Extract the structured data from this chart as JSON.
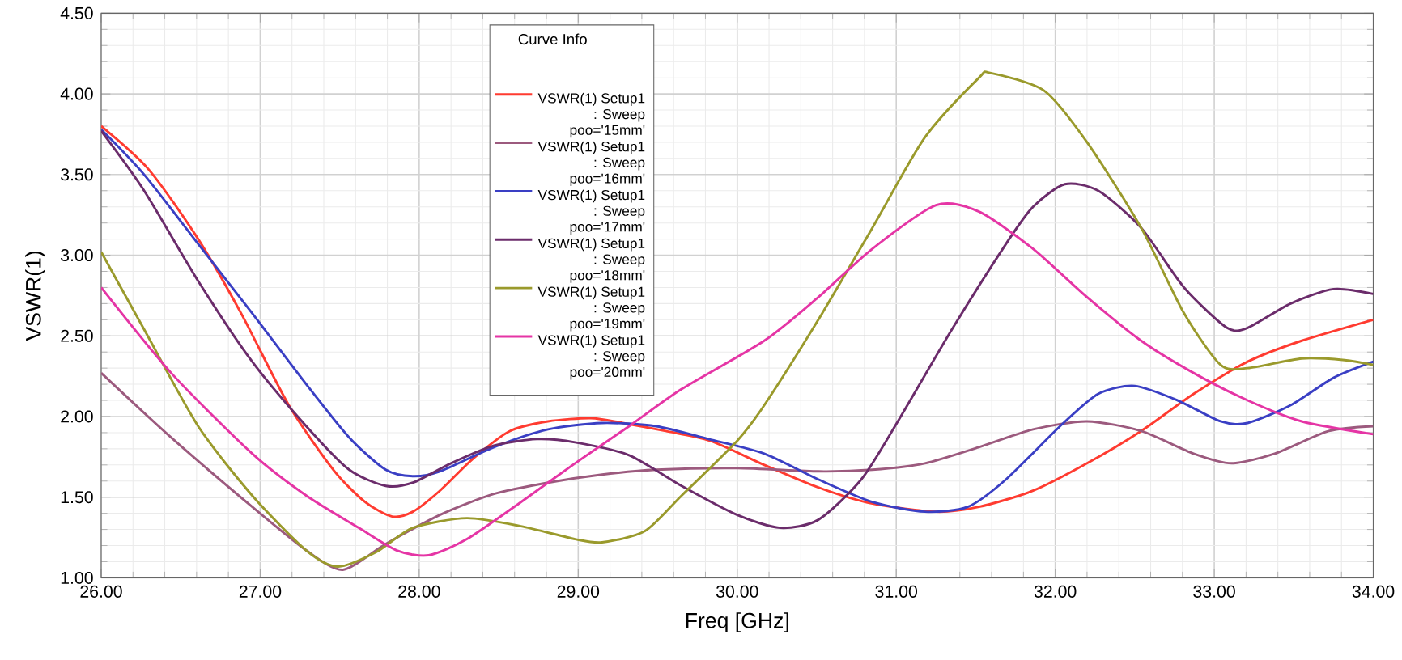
{
  "chart_data": {
    "type": "line",
    "xlabel": "Freq [GHz]",
    "ylabel": "VSWR(1)",
    "legend_title": "Curve Info",
    "legend": "top",
    "grid": true,
    "marker": "none",
    "line_style": "solid",
    "xlim": [
      26,
      34
    ],
    "ylim": [
      1,
      4.5
    ],
    "xticks": [
      {
        "value": 26,
        "label": "26.00"
      },
      {
        "value": 27,
        "label": "27.00"
      },
      {
        "value": 28,
        "label": "28.00"
      },
      {
        "value": 29,
        "label": "29.00"
      },
      {
        "value": 30,
        "label": "30.00"
      },
      {
        "value": 31,
        "label": "31.00"
      },
      {
        "value": 32,
        "label": "32.00"
      },
      {
        "value": 33,
        "label": "33.00"
      },
      {
        "value": 34,
        "label": "34.00"
      }
    ],
    "yticks": [
      {
        "value": 1,
        "label": "1.00"
      },
      {
        "value": 1.5,
        "label": "1.50"
      },
      {
        "value": 2,
        "label": "2.00"
      },
      {
        "value": 2.5,
        "label": "2.50"
      },
      {
        "value": 3,
        "label": "3.00"
      },
      {
        "value": 3.5,
        "label": "3.50"
      },
      {
        "value": 4,
        "label": "4.00"
      },
      {
        "value": 4.5,
        "label": "4.50"
      }
    ],
    "series": [
      {
        "name": "VSWR(1) Setup1 : Sweep poo='15mm'",
        "color": "#ff3b30",
        "x": [
          26,
          26.3,
          26.61,
          26.88,
          27.18,
          27.46,
          27.66,
          27.83,
          27.96,
          28.13,
          28.34,
          28.57,
          28.81,
          29.08,
          29.28,
          29.55,
          29.83,
          30.17,
          30.51,
          30.85,
          31.25,
          31.52,
          31.86,
          32.2,
          32.54,
          32.87,
          33.21,
          33.55,
          34
        ],
        "values": [
          3.8,
          3.53,
          3.1,
          2.64,
          2.07,
          1.67,
          1.47,
          1.38,
          1.41,
          1.54,
          1.74,
          1.91,
          1.97,
          1.99,
          1.96,
          1.91,
          1.85,
          1.7,
          1.56,
          1.46,
          1.41,
          1.44,
          1.54,
          1.71,
          1.91,
          2.14,
          2.34,
          2.47,
          2.6
        ]
      },
      {
        "name": "VSWR(1) Setup1 : Sweep poo='16mm'",
        "color": "#9c5a7e",
        "x": [
          26,
          26.44,
          26.95,
          27.29,
          27.52,
          27.79,
          28.13,
          28.47,
          28.81,
          29.15,
          29.49,
          30,
          30.51,
          30.85,
          31.18,
          31.52,
          31.86,
          32.2,
          32.54,
          32.87,
          33.11,
          33.38,
          33.72,
          34
        ],
        "values": [
          2.27,
          1.87,
          1.44,
          1.17,
          1.05,
          1.21,
          1.39,
          1.52,
          1.59,
          1.64,
          1.67,
          1.68,
          1.66,
          1.67,
          1.71,
          1.81,
          1.92,
          1.97,
          1.91,
          1.77,
          1.71,
          1.77,
          1.91,
          1.94
        ]
      },
      {
        "name": "VSWR(1) Setup1 : Sweep poo='17mm'",
        "color": "#3a3fc4",
        "x": [
          26,
          26.27,
          26.61,
          26.95,
          27.29,
          27.56,
          27.79,
          27.96,
          28.13,
          28.47,
          28.81,
          29.15,
          29.49,
          29.82,
          30.17,
          30.51,
          30.85,
          31.18,
          31.45,
          31.69,
          32.03,
          32.27,
          32.5,
          32.77,
          33.04,
          33.21,
          33.48,
          33.75,
          34
        ],
        "values": [
          3.78,
          3.5,
          3.07,
          2.64,
          2.2,
          1.87,
          1.67,
          1.63,
          1.66,
          1.81,
          1.92,
          1.96,
          1.94,
          1.86,
          1.77,
          1.61,
          1.47,
          1.41,
          1.44,
          1.61,
          1.94,
          2.14,
          2.19,
          2.1,
          1.97,
          1.96,
          2.07,
          2.24,
          2.34
        ]
      },
      {
        "name": "VSWR(1) Setup1 : Sweep poo='18mm'",
        "color": "#6b2c6b",
        "x": [
          26,
          26.27,
          26.61,
          26.95,
          27.29,
          27.56,
          27.79,
          27.96,
          28.2,
          28.47,
          28.74,
          28.98,
          29.32,
          29.65,
          30,
          30.27,
          30.51,
          30.78,
          31.01,
          31.35,
          31.69,
          31.86,
          32.06,
          32.27,
          32.54,
          32.81,
          33.08,
          33.21,
          33.48,
          33.75,
          34
        ],
        "values": [
          3.77,
          3.4,
          2.84,
          2.34,
          1.94,
          1.67,
          1.57,
          1.59,
          1.71,
          1.82,
          1.86,
          1.84,
          1.76,
          1.57,
          1.39,
          1.31,
          1.36,
          1.61,
          1.97,
          2.54,
          3.07,
          3.3,
          3.44,
          3.4,
          3.17,
          2.8,
          2.55,
          2.55,
          2.7,
          2.79,
          2.76
        ]
      },
      {
        "name": "VSWR(1) Setup1 : Sweep poo='19mm'",
        "color": "#9a9a2c",
        "x": [
          26,
          26.27,
          26.61,
          26.95,
          27.29,
          27.49,
          27.73,
          27.96,
          28.3,
          28.64,
          28.98,
          29.15,
          29.42,
          29.65,
          30,
          30.17,
          30.51,
          30.85,
          31.18,
          31.52,
          31.59,
          31.93,
          32.2,
          32.54,
          32.81,
          33.04,
          33.21,
          33.55,
          33.82,
          34
        ],
        "values": [
          3.02,
          2.54,
          1.94,
          1.51,
          1.17,
          1.07,
          1.16,
          1.31,
          1.37,
          1.32,
          1.24,
          1.22,
          1.29,
          1.51,
          1.85,
          2.07,
          2.6,
          3.17,
          3.73,
          4.1,
          4.13,
          4.02,
          3.7,
          3.17,
          2.64,
          2.32,
          2.3,
          2.36,
          2.35,
          2.32
        ]
      },
      {
        "name": "VSWR(1) Setup1 : Sweep poo='20mm'",
        "color": "#e535a5",
        "x": [
          26,
          26.44,
          26.95,
          27.29,
          27.62,
          27.86,
          28.06,
          28.3,
          28.64,
          28.98,
          29.32,
          29.65,
          30.17,
          30.51,
          30.85,
          31.25,
          31.52,
          31.86,
          32.2,
          32.54,
          32.87,
          33.21,
          33.55,
          34
        ],
        "values": [
          2.8,
          2.27,
          1.77,
          1.51,
          1.31,
          1.17,
          1.14,
          1.24,
          1.47,
          1.71,
          1.94,
          2.17,
          2.47,
          2.74,
          3.04,
          3.31,
          3.27,
          3.04,
          2.74,
          2.47,
          2.27,
          2.1,
          1.97,
          1.89
        ]
      }
    ]
  }
}
